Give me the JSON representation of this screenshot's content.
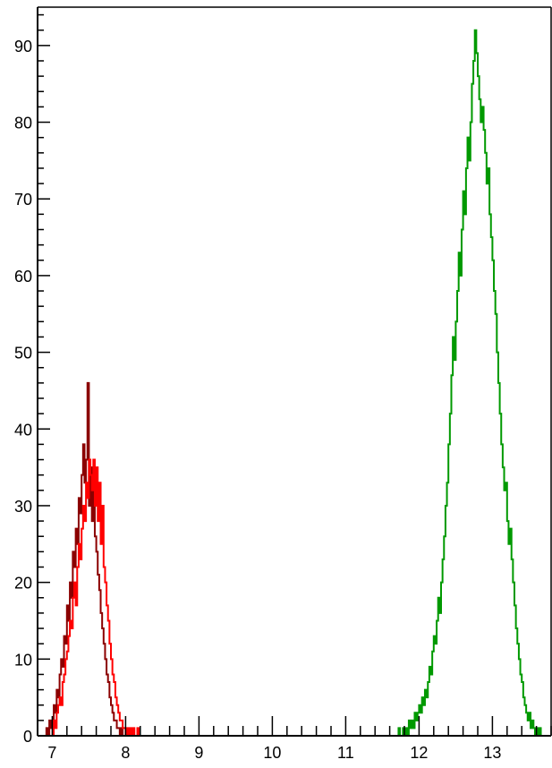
{
  "chart_data": {
    "type": "histogram",
    "title": "",
    "xlabel": "",
    "ylabel": "",
    "xlim": [
      6.8,
      13.8
    ],
    "ylim": [
      0,
      95
    ],
    "grid": false,
    "legend": "none",
    "x_ticks": [
      "7",
      "8",
      "9",
      "10",
      "11",
      "12",
      "13"
    ],
    "y_ticks": [
      "0",
      "10",
      "20",
      "30",
      "40",
      "50",
      "60",
      "70",
      "80",
      "90"
    ],
    "series": [
      {
        "color": "#8b0000",
        "bin_width": 0.02,
        "bins": [
          [
            6.9,
            0
          ],
          [
            6.92,
            1
          ],
          [
            6.94,
            0
          ],
          [
            6.96,
            2
          ],
          [
            6.98,
            1
          ],
          [
            7.0,
            2
          ],
          [
            7.02,
            4
          ],
          [
            7.04,
            3
          ],
          [
            7.06,
            6
          ],
          [
            7.08,
            5
          ],
          [
            7.1,
            8
          ],
          [
            7.12,
            10
          ],
          [
            7.14,
            9
          ],
          [
            7.16,
            13
          ],
          [
            7.18,
            12
          ],
          [
            7.2,
            17
          ],
          [
            7.22,
            15
          ],
          [
            7.24,
            20
          ],
          [
            7.26,
            18
          ],
          [
            7.28,
            24
          ],
          [
            7.3,
            22
          ],
          [
            7.32,
            27
          ],
          [
            7.34,
            25
          ],
          [
            7.36,
            31
          ],
          [
            7.38,
            29
          ],
          [
            7.4,
            34
          ],
          [
            7.42,
            38
          ],
          [
            7.44,
            33
          ],
          [
            7.46,
            36
          ],
          [
            7.48,
            46
          ],
          [
            7.5,
            30
          ],
          [
            7.52,
            35
          ],
          [
            7.54,
            28
          ],
          [
            7.56,
            32
          ],
          [
            7.58,
            26
          ],
          [
            7.6,
            24
          ],
          [
            7.62,
            21
          ],
          [
            7.64,
            19
          ],
          [
            7.66,
            16
          ],
          [
            7.68,
            14
          ],
          [
            7.7,
            12
          ],
          [
            7.72,
            10
          ],
          [
            7.74,
            8
          ],
          [
            7.76,
            7
          ],
          [
            7.78,
            5
          ],
          [
            7.8,
            4
          ],
          [
            7.82,
            3
          ],
          [
            7.84,
            2
          ],
          [
            7.86,
            2
          ],
          [
            7.88,
            1
          ],
          [
            7.9,
            1
          ],
          [
            7.92,
            0
          ],
          [
            7.94,
            1
          ],
          [
            7.96,
            0
          ]
        ]
      },
      {
        "color": "#ff0000",
        "bin_width": 0.02,
        "bins": [
          [
            7.0,
            0
          ],
          [
            7.02,
            2
          ],
          [
            7.04,
            1
          ],
          [
            7.06,
            3
          ],
          [
            7.08,
            4
          ],
          [
            7.1,
            5
          ],
          [
            7.12,
            4
          ],
          [
            7.14,
            7
          ],
          [
            7.16,
            8
          ],
          [
            7.18,
            10
          ],
          [
            7.2,
            11
          ],
          [
            7.22,
            13
          ],
          [
            7.24,
            15
          ],
          [
            7.26,
            14
          ],
          [
            7.28,
            18
          ],
          [
            7.3,
            20
          ],
          [
            7.32,
            17
          ],
          [
            7.34,
            22
          ],
          [
            7.36,
            25
          ],
          [
            7.38,
            23
          ],
          [
            7.4,
            27
          ],
          [
            7.42,
            30
          ],
          [
            7.44,
            28
          ],
          [
            7.46,
            33
          ],
          [
            7.48,
            31
          ],
          [
            7.5,
            36
          ],
          [
            7.52,
            34
          ],
          [
            7.54,
            32
          ],
          [
            7.56,
            36
          ],
          [
            7.58,
            30
          ],
          [
            7.6,
            35
          ],
          [
            7.62,
            28
          ],
          [
            7.64,
            33
          ],
          [
            7.66,
            25
          ],
          [
            7.68,
            30
          ],
          [
            7.7,
            22
          ],
          [
            7.72,
            20
          ],
          [
            7.74,
            17
          ],
          [
            7.76,
            15
          ],
          [
            7.78,
            12
          ],
          [
            7.8,
            10
          ],
          [
            7.82,
            8
          ],
          [
            7.84,
            7
          ],
          [
            7.86,
            5
          ],
          [
            7.88,
            4
          ],
          [
            7.9,
            3
          ],
          [
            7.92,
            2
          ],
          [
            7.94,
            2
          ],
          [
            7.96,
            1
          ],
          [
            7.98,
            1
          ],
          [
            8.0,
            0
          ],
          [
            8.02,
            1
          ],
          [
            8.04,
            0
          ],
          [
            8.06,
            1
          ],
          [
            8.08,
            0
          ],
          [
            8.1,
            1
          ],
          [
            8.12,
            0
          ],
          [
            8.14,
            0
          ],
          [
            8.16,
            1
          ],
          [
            8.18,
            0
          ]
        ]
      },
      {
        "color": "#009900",
        "bin_width": 0.02,
        "bins": [
          [
            11.7,
            0
          ],
          [
            11.72,
            1
          ],
          [
            11.74,
            0
          ],
          [
            11.76,
            0
          ],
          [
            11.78,
            1
          ],
          [
            11.8,
            0
          ],
          [
            11.82,
            1
          ],
          [
            11.84,
            0
          ],
          [
            11.86,
            2
          ],
          [
            11.88,
            1
          ],
          [
            11.9,
            2
          ],
          [
            11.92,
            1
          ],
          [
            11.94,
            3
          ],
          [
            11.96,
            2
          ],
          [
            11.98,
            3
          ],
          [
            12.0,
            4
          ],
          [
            12.02,
            3
          ],
          [
            12.04,
            5
          ],
          [
            12.06,
            4
          ],
          [
            12.08,
            6
          ],
          [
            12.1,
            5
          ],
          [
            12.12,
            7
          ],
          [
            12.14,
            9
          ],
          [
            12.16,
            8
          ],
          [
            12.18,
            11
          ],
          [
            12.2,
            13
          ],
          [
            12.22,
            12
          ],
          [
            12.24,
            15
          ],
          [
            12.26,
            18
          ],
          [
            12.28,
            16
          ],
          [
            12.3,
            20
          ],
          [
            12.32,
            23
          ],
          [
            12.34,
            26
          ],
          [
            12.36,
            30
          ],
          [
            12.38,
            33
          ],
          [
            12.4,
            38
          ],
          [
            12.42,
            42
          ],
          [
            12.44,
            47
          ],
          [
            12.46,
            52
          ],
          [
            12.48,
            49
          ],
          [
            12.5,
            54
          ],
          [
            12.52,
            58
          ],
          [
            12.54,
            63
          ],
          [
            12.56,
            60
          ],
          [
            12.58,
            66
          ],
          [
            12.6,
            71
          ],
          [
            12.62,
            68
          ],
          [
            12.64,
            74
          ],
          [
            12.66,
            78
          ],
          [
            12.68,
            75
          ],
          [
            12.7,
            80
          ],
          [
            12.72,
            85
          ],
          [
            12.74,
            88
          ],
          [
            12.76,
            92
          ],
          [
            12.78,
            89
          ],
          [
            12.8,
            86
          ],
          [
            12.82,
            83
          ],
          [
            12.84,
            80
          ],
          [
            12.86,
            82
          ],
          [
            12.88,
            79
          ],
          [
            12.9,
            76
          ],
          [
            12.92,
            72
          ],
          [
            12.94,
            74
          ],
          [
            12.96,
            68
          ],
          [
            12.98,
            65
          ],
          [
            13.0,
            62
          ],
          [
            13.02,
            58
          ],
          [
            13.04,
            55
          ],
          [
            13.06,
            50
          ],
          [
            13.08,
            46
          ],
          [
            13.1,
            42
          ],
          [
            13.12,
            38
          ],
          [
            13.14,
            35
          ],
          [
            13.16,
            32
          ],
          [
            13.18,
            33
          ],
          [
            13.2,
            28
          ],
          [
            13.22,
            25
          ],
          [
            13.24,
            27
          ],
          [
            13.26,
            23
          ],
          [
            13.28,
            20
          ],
          [
            13.3,
            17
          ],
          [
            13.32,
            14
          ],
          [
            13.34,
            12
          ],
          [
            13.36,
            10
          ],
          [
            13.38,
            8
          ],
          [
            13.4,
            7
          ],
          [
            13.42,
            5
          ],
          [
            13.44,
            4
          ],
          [
            13.46,
            3
          ],
          [
            13.48,
            2
          ],
          [
            13.5,
            3
          ],
          [
            13.52,
            1
          ],
          [
            13.54,
            2
          ],
          [
            13.56,
            1
          ],
          [
            13.58,
            0
          ],
          [
            13.6,
            1
          ],
          [
            13.62,
            0
          ],
          [
            13.64,
            1
          ],
          [
            13.66,
            0
          ],
          [
            13.68,
            0
          ]
        ]
      }
    ]
  }
}
